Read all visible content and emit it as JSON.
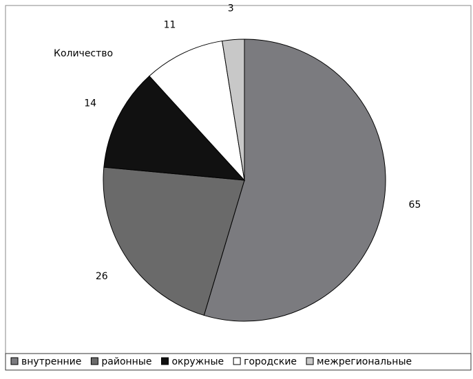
{
  "chart_data": {
    "type": "pie",
    "title": "Количество",
    "categories": [
      "внутренние",
      "районные",
      "окружные",
      "городские",
      "межрегиональные"
    ],
    "values": [
      65,
      26,
      14,
      11,
      3
    ],
    "colors": [
      "#7b7b7f",
      "#6a6a6a",
      "#111111",
      "#ffffff",
      "#c8c8c8"
    ],
    "legend": "bottom"
  }
}
